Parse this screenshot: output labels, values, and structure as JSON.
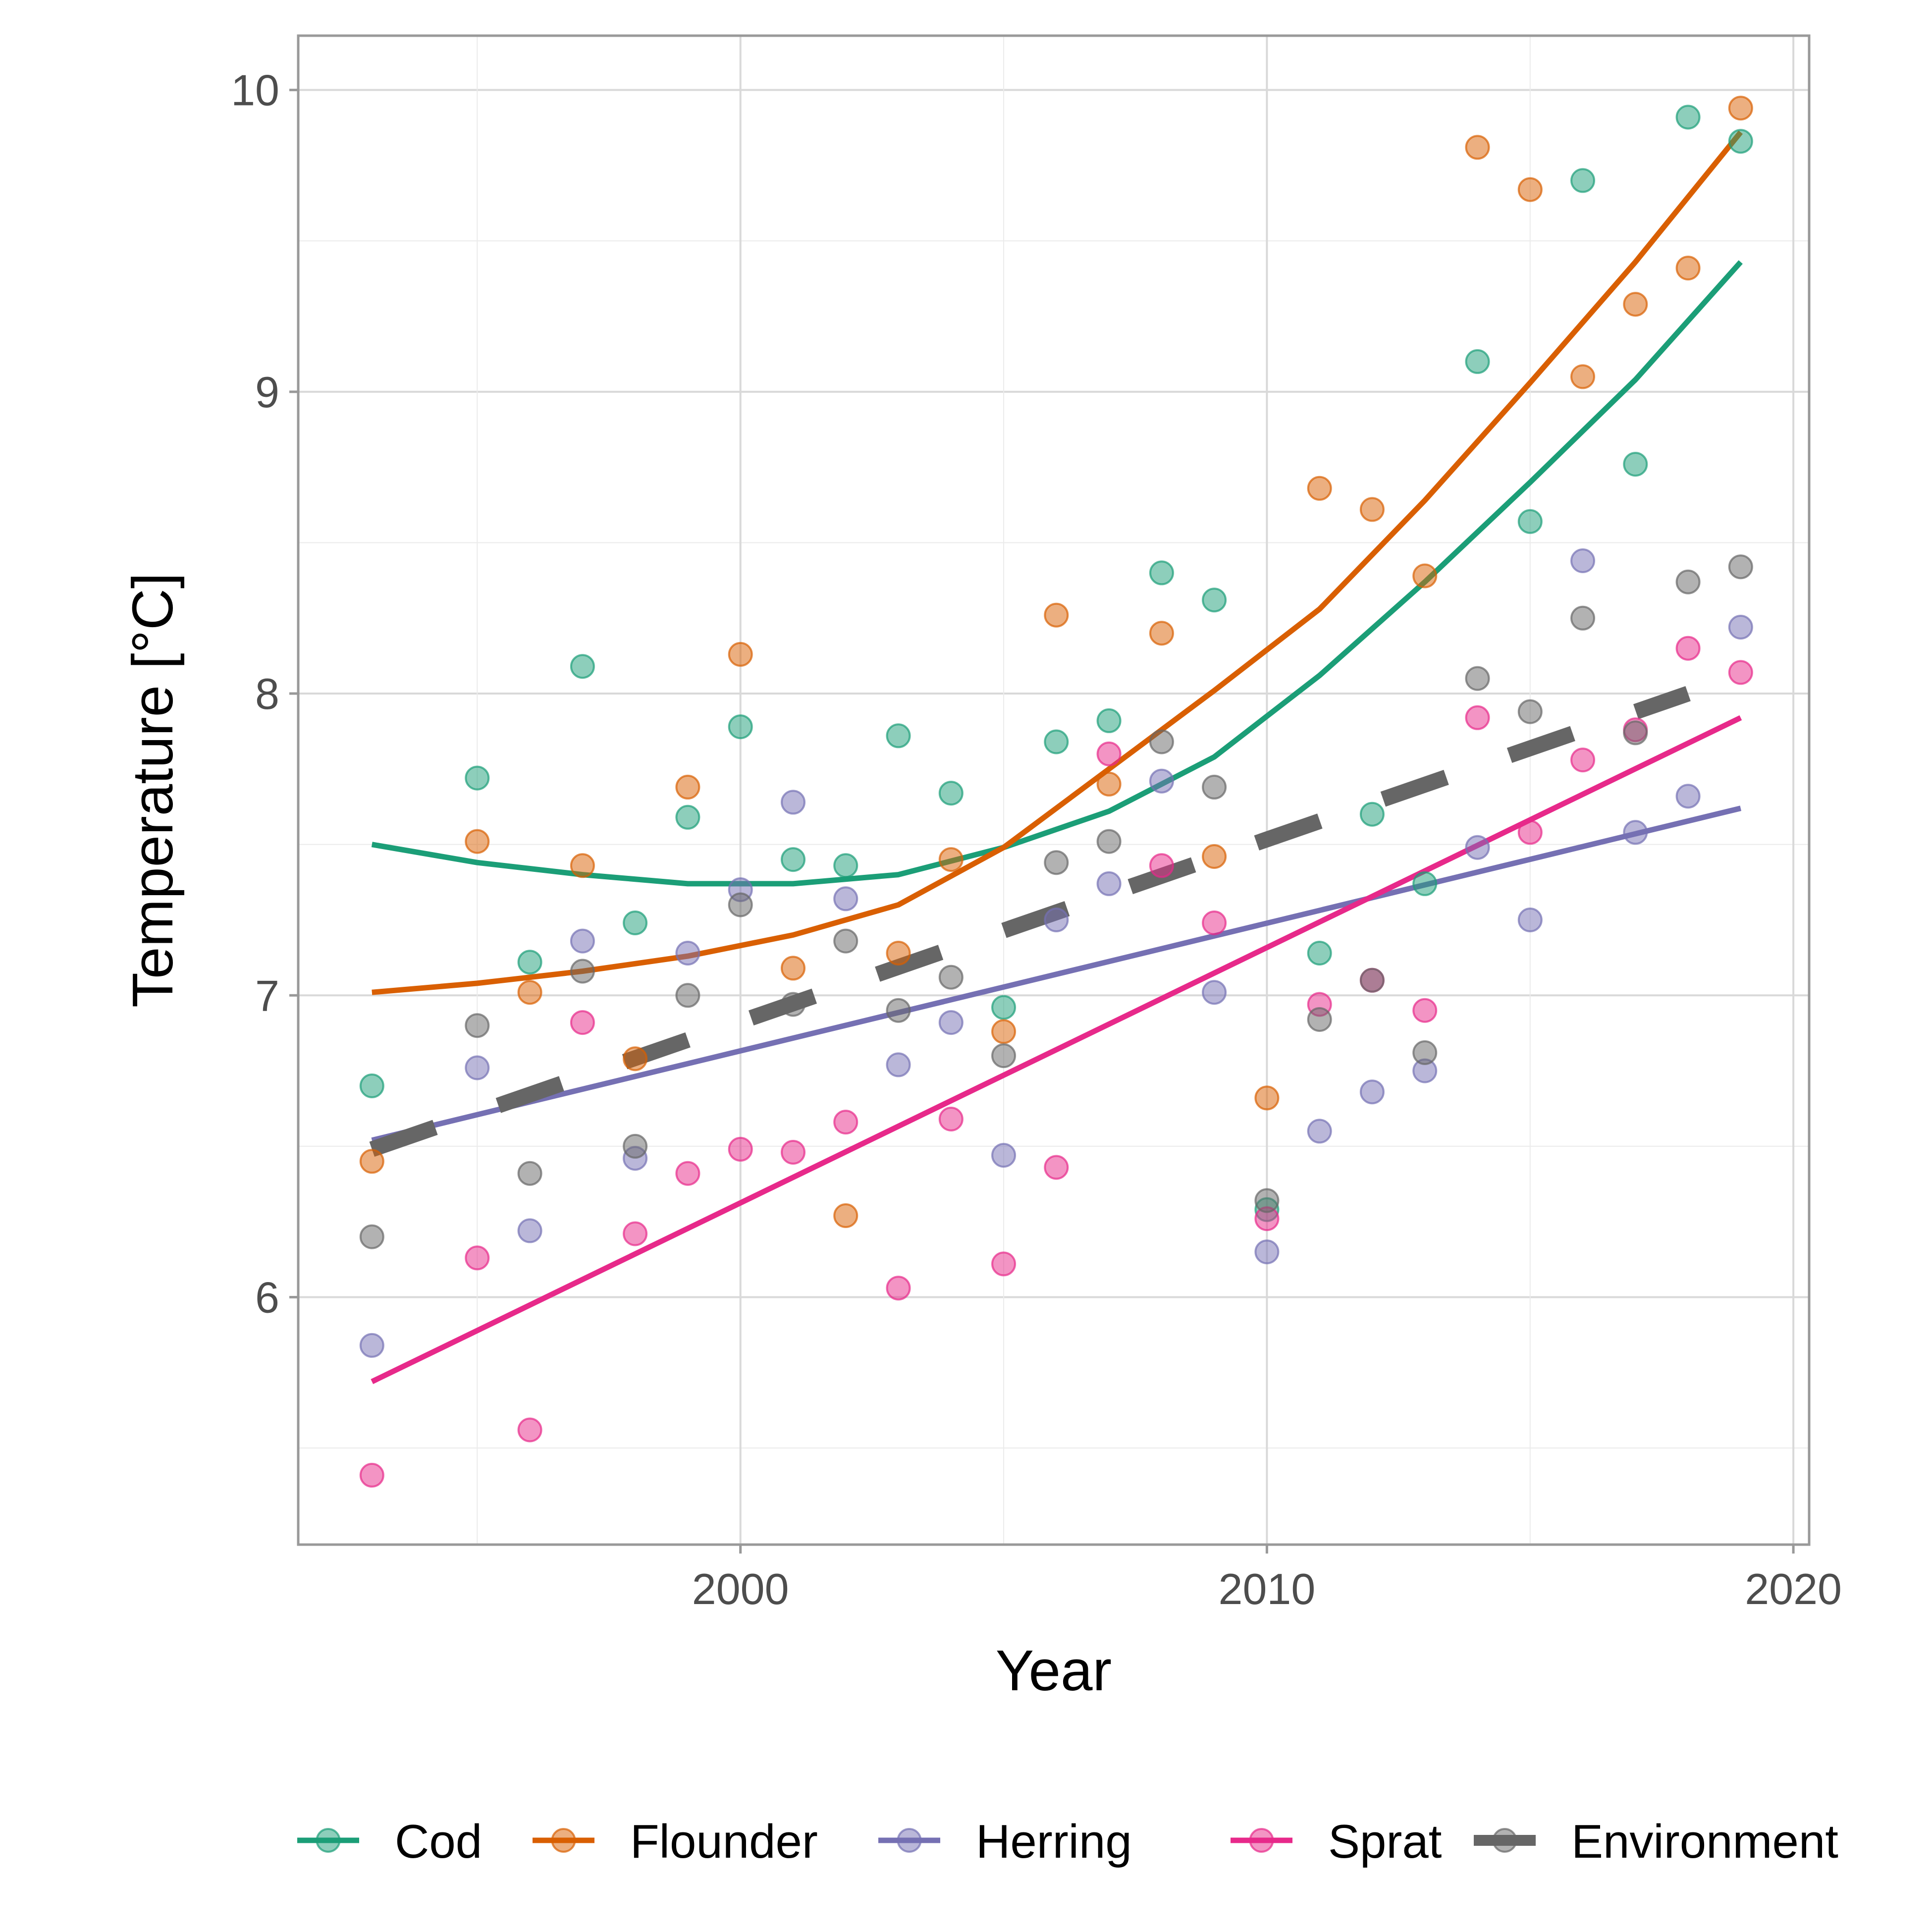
{
  "chart_data": {
    "type": "scatter",
    "title": "",
    "xlabel": "Year",
    "ylabel": "Temperature [°C]",
    "xlim": [
      1991.6,
      2020.3
    ],
    "ylim": [
      5.18,
      10.18
    ],
    "x_ticks": [
      2000,
      2010,
      2020
    ],
    "x_tick_labels": [
      "2000",
      "2010",
      "2020"
    ],
    "y_ticks": [
      6,
      7,
      8,
      9,
      10
    ],
    "y_tick_labels": [
      "6",
      "7",
      "8",
      "9",
      "10"
    ],
    "grid": true,
    "legend_position": "bottom",
    "series": [
      {
        "name": "Cod",
        "color": "#1b9e77",
        "trend": "quadratic",
        "line_style": "solid",
        "x": [
          1993,
          1995,
          1996,
          1997,
          1998,
          1999,
          2000,
          2001,
          2002,
          2003,
          2004,
          2005,
          2006,
          2007,
          2008,
          2009,
          2010,
          2011,
          2012,
          2013,
          2014,
          2015,
          2016,
          2017,
          2018,
          2019
        ],
        "y": [
          6.7,
          7.72,
          7.11,
          8.09,
          7.24,
          7.59,
          7.89,
          7.45,
          7.43,
          7.86,
          7.67,
          6.96,
          7.84,
          7.91,
          8.4,
          8.31,
          6.29,
          7.14,
          7.6,
          7.37,
          9.1,
          8.57,
          9.7,
          8.76,
          9.91,
          9.83
        ],
        "fit": [
          {
            "x": 1993,
            "y": 7.5
          },
          {
            "x": 1995,
            "y": 7.44
          },
          {
            "x": 1997,
            "y": 7.4
          },
          {
            "x": 1999,
            "y": 7.37
          },
          {
            "x": 2001,
            "y": 7.37
          },
          {
            "x": 2003,
            "y": 7.4
          },
          {
            "x": 2005,
            "y": 7.49
          },
          {
            "x": 2007,
            "y": 7.61
          },
          {
            "x": 2009,
            "y": 7.79
          },
          {
            "x": 2011,
            "y": 8.06
          },
          {
            "x": 2013,
            "y": 8.37
          },
          {
            "x": 2015,
            "y": 8.7
          },
          {
            "x": 2017,
            "y": 9.04
          },
          {
            "x": 2019,
            "y": 9.43
          }
        ]
      },
      {
        "name": "Flounder",
        "color": "#d95f02",
        "trend": "quadratic",
        "line_style": "solid",
        "x": [
          1993,
          1995,
          1996,
          1997,
          1998,
          1999,
          2000,
          2001,
          2002,
          2003,
          2004,
          2005,
          2006,
          2007,
          2008,
          2009,
          2010,
          2011,
          2012,
          2013,
          2014,
          2015,
          2016,
          2017,
          2018,
          2019
        ],
        "y": [
          6.45,
          7.51,
          7.01,
          7.43,
          6.79,
          7.69,
          8.13,
          7.09,
          6.27,
          7.14,
          7.45,
          6.88,
          8.26,
          7.7,
          8.2,
          7.46,
          6.66,
          8.68,
          8.61,
          8.39,
          9.81,
          9.67,
          9.05,
          9.29,
          9.41,
          9.94
        ],
        "fit": [
          {
            "x": 1993,
            "y": 7.01
          },
          {
            "x": 1995,
            "y": 7.04
          },
          {
            "x": 1997,
            "y": 7.08
          },
          {
            "x": 1999,
            "y": 7.13
          },
          {
            "x": 2001,
            "y": 7.2
          },
          {
            "x": 2003,
            "y": 7.3
          },
          {
            "x": 2005,
            "y": 7.49
          },
          {
            "x": 2007,
            "y": 7.75
          },
          {
            "x": 2009,
            "y": 8.01
          },
          {
            "x": 2011,
            "y": 8.28
          },
          {
            "x": 2013,
            "y": 8.64
          },
          {
            "x": 2015,
            "y": 9.03
          },
          {
            "x": 2017,
            "y": 9.43
          },
          {
            "x": 2019,
            "y": 9.86
          }
        ]
      },
      {
        "name": "Herring",
        "color": "#7570b3",
        "trend": "linear",
        "line_style": "solid",
        "x": [
          1993,
          1995,
          1996,
          1997,
          1998,
          1999,
          2000,
          2001,
          2002,
          2003,
          2004,
          2005,
          2006,
          2007,
          2008,
          2009,
          2010,
          2011,
          2012,
          2013,
          2014,
          2015,
          2016,
          2017,
          2018,
          2019
        ],
        "y": [
          5.84,
          6.76,
          6.22,
          7.18,
          6.46,
          7.14,
          7.35,
          7.64,
          7.32,
          6.77,
          6.91,
          6.47,
          7.25,
          7.37,
          7.71,
          7.01,
          6.15,
          6.55,
          6.68,
          6.75,
          7.49,
          7.25,
          8.44,
          7.54,
          7.66,
          8.22
        ],
        "fit": [
          {
            "x": 1993,
            "y": 6.52
          },
          {
            "x": 2019,
            "y": 7.62
          }
        ]
      },
      {
        "name": "Sprat",
        "color": "#e7298a",
        "trend": "linear",
        "line_style": "solid",
        "x": [
          1993,
          1995,
          1996,
          1997,
          1998,
          1999,
          2000,
          2001,
          2002,
          2003,
          2004,
          2005,
          2006,
          2007,
          2008,
          2009,
          2010,
          2011,
          2012,
          2013,
          2014,
          2015,
          2016,
          2017,
          2018,
          2019
        ],
        "y": [
          5.41,
          6.13,
          5.56,
          6.91,
          6.21,
          6.41,
          6.49,
          6.48,
          6.58,
          6.03,
          6.59,
          6.11,
          6.43,
          7.8,
          7.43,
          7.24,
          6.26,
          6.97,
          7.05,
          6.95,
          7.92,
          7.54,
          7.78,
          7.88,
          8.15,
          8.07
        ],
        "fit": [
          {
            "x": 1993,
            "y": 5.72
          },
          {
            "x": 2019,
            "y": 7.92
          }
        ]
      },
      {
        "name": "Environment",
        "color": "#666666",
        "trend": "linear",
        "line_style": "dashed",
        "x": [
          1993,
          1995,
          1996,
          1997,
          1998,
          1999,
          2000,
          2001,
          2002,
          2003,
          2004,
          2005,
          2006,
          2007,
          2008,
          2009,
          2010,
          2011,
          2012,
          2013,
          2014,
          2015,
          2016,
          2017,
          2018,
          2019
        ],
        "y": [
          6.2,
          6.9,
          6.41,
          7.08,
          6.5,
          7.0,
          7.3,
          6.97,
          7.18,
          6.95,
          7.06,
          6.8,
          7.44,
          7.51,
          7.84,
          7.69,
          6.32,
          6.92,
          7.05,
          6.81,
          8.05,
          7.94,
          8.25,
          7.87,
          8.37,
          8.42
        ],
        "fit": [
          {
            "x": 1993,
            "y": 6.49
          },
          {
            "x": 2018,
            "y": 8.0
          }
        ]
      }
    ]
  }
}
